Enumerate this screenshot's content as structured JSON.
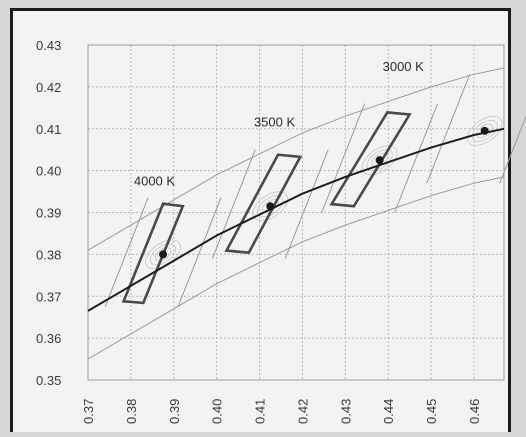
{
  "chart_data": {
    "type": "line",
    "title": "",
    "xlabel": "",
    "ylabel": "",
    "xlim": [
      0.37,
      0.467
    ],
    "ylim": [
      0.35,
      0.43
    ],
    "x_ticks": [
      "0.37",
      "0.38",
      "0.39",
      "0.40",
      "0.41",
      "0.42",
      "0.43",
      "0.44",
      "0.45",
      "0.46"
    ],
    "y_ticks": [
      "0.43",
      "0.42",
      "0.41",
      "0.40",
      "0.39",
      "0.38",
      "0.37",
      "0.36",
      "0.35"
    ],
    "grid": true,
    "series": [
      {
        "role": "planckian-locus",
        "color": "#1f1f1f",
        "x": [
          0.37,
          0.38,
          0.39,
          0.4,
          0.41,
          0.42,
          0.43,
          0.44,
          0.45,
          0.46,
          0.467
        ],
        "y": [
          0.3665,
          0.3725,
          0.3785,
          0.3845,
          0.3895,
          0.3945,
          0.3985,
          0.402,
          0.4055,
          0.4085,
          0.41
        ]
      }
    ],
    "points": [
      {
        "x": 0.3875,
        "y": 0.38
      },
      {
        "x": 0.4125,
        "y": 0.3915
      },
      {
        "x": 0.438,
        "y": 0.4025
      },
      {
        "x": 0.4625,
        "y": 0.4095
      }
    ],
    "quadrangles": [
      [
        [
          0.3829,
          0.3684
        ],
        [
          0.3921,
          0.3915
        ],
        [
          0.3875,
          0.3921
        ],
        [
          0.3783,
          0.3688
        ]
      ],
      [
        [
          0.4075,
          0.3804
        ],
        [
          0.4195,
          0.4033
        ],
        [
          0.4143,
          0.4038
        ],
        [
          0.4023,
          0.3809
        ]
      ],
      [
        [
          0.432,
          0.3915
        ],
        [
          0.445,
          0.4134
        ],
        [
          0.4398,
          0.4139
        ],
        [
          0.4268,
          0.392
        ]
      ]
    ],
    "annotations": [
      {
        "text": "4000 K",
        "x": 0.3855,
        "y": 0.3965
      },
      {
        "text": "3500 K",
        "x": 0.4135,
        "y": 0.4105
      },
      {
        "text": "3000 K",
        "x": 0.4435,
        "y": 0.4238
      }
    ],
    "colors": {
      "locus": "#1f1f1f",
      "quad": "#4a4a4a",
      "grid": "#b8b8b8",
      "faint": "#9a9a9a"
    }
  }
}
